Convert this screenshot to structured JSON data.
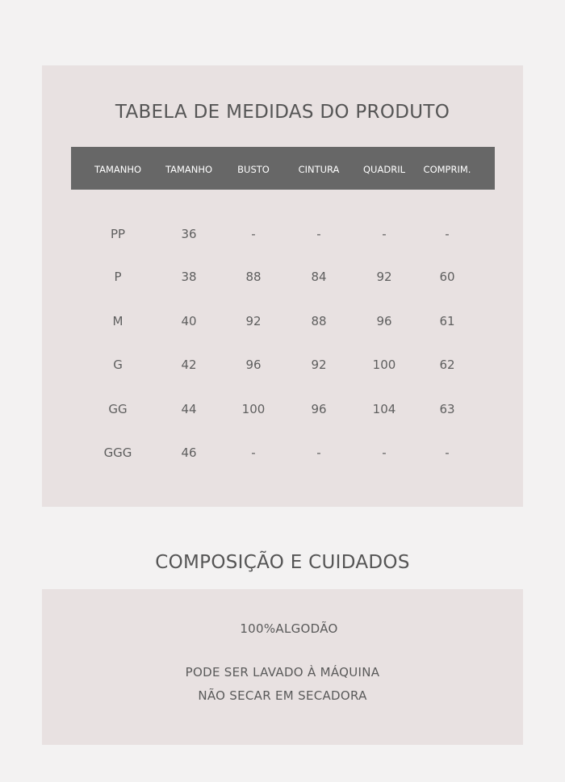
{
  "size_table": {
    "title": "TABELA DE MEDIDAS DO PRODUTO",
    "header": [
      "TAMANHO",
      "TAMANHO",
      "BUSTO",
      "CINTURA",
      "QUADRIL",
      "COMPRIM."
    ],
    "rows": [
      [
        "PP",
        "36",
        "-",
        "-",
        "-",
        "-"
      ],
      [
        "P",
        "38",
        "88",
        "84",
        "92",
        "60"
      ],
      [
        "M",
        "40",
        "92",
        "88",
        "96",
        "61"
      ],
      [
        "G",
        "42",
        "96",
        "92",
        "100",
        "62"
      ],
      [
        "GG",
        "44",
        "100",
        "96",
        "104",
        "63"
      ],
      [
        "GGG",
        "46",
        "-",
        "-",
        "-",
        "-"
      ]
    ]
  },
  "care": {
    "title": "COMPOSIÇÃO E CUIDADOS",
    "composition": "100%ALGODÃO",
    "instructions": [
      "PODE SER LAVADO À MÁQUINA",
      "NÃO SECAR EM SECADORA"
    ]
  }
}
